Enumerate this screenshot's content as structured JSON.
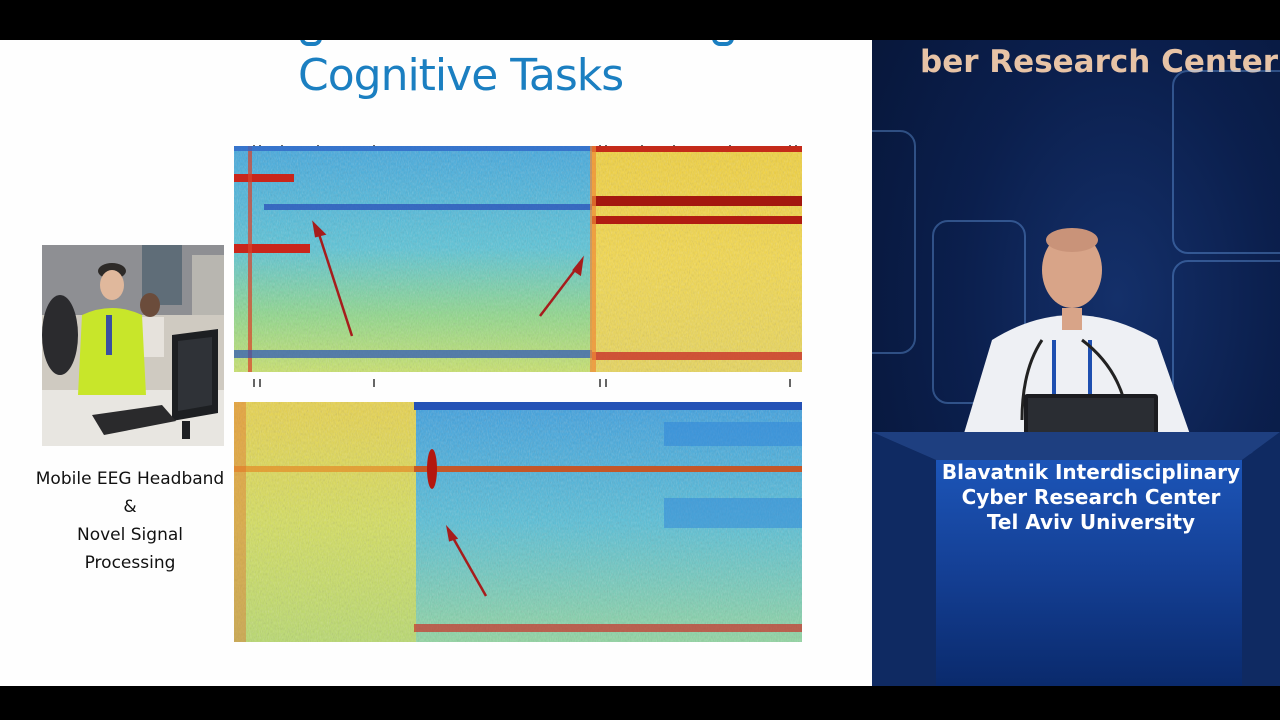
{
  "slide": {
    "title": "Cognitive Tasks",
    "caption_line1": "Mobile EEG Headband &",
    "caption_line2": "Novel Signal Processing"
  },
  "stage": {
    "banner": "ber Research Center",
    "podium_line1": "Blavatnik Interdisciplinary",
    "podium_line2": "Cyber Research Center",
    "podium_line3": "Tel Aviv University"
  },
  "colors": {
    "slide_title": "#1b7fc1",
    "stage_background": "#0b1f4d",
    "banner_text": "#e7c3a6",
    "arrow": "#a61c1c"
  }
}
